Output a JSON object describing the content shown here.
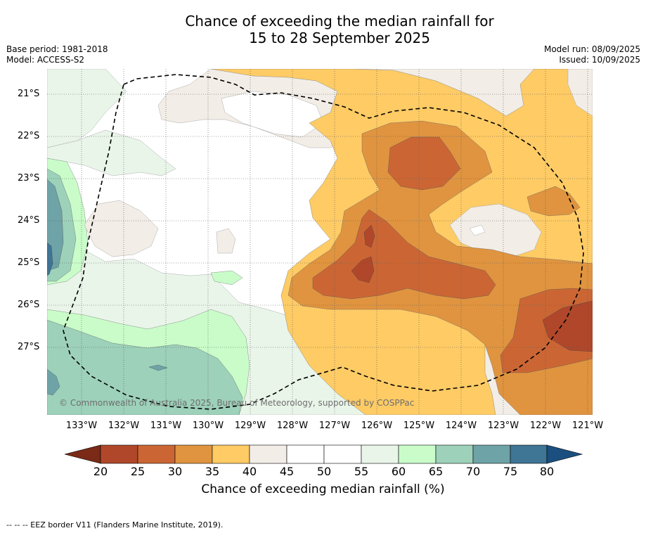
{
  "title_line1": "Chance of exceeding the median rainfall for",
  "title_line2": "15 to 28 September 2025",
  "meta": {
    "base_period": "Base period: 1981-2018",
    "model": "Model: ACCESS-S2",
    "model_run": "Model run: 08/09/2025",
    "issued": "Issued: 10/09/2025"
  },
  "map": {
    "lat_labels": [
      "21°S",
      "22°S",
      "23°S",
      "24°S",
      "25°S",
      "26°S",
      "27°S"
    ],
    "lon_labels": [
      "133°W",
      "132°W",
      "131°W",
      "130°W",
      "129°W",
      "128°W",
      "127°W",
      "126°W",
      "125°W",
      "124°W",
      "123°W",
      "122°W",
      "121°W"
    ],
    "copyright": "© Commonwealth of Australia 2025, Bureau of Meteorology, supported by COSPPac",
    "boundary": "EEZ border (dashed)"
  },
  "colorbar": {
    "ticks": [
      "20",
      "25",
      "30",
      "35",
      "40",
      "45",
      "50",
      "55",
      "60",
      "65",
      "70",
      "75",
      "80"
    ],
    "colors": [
      "#7a2a17",
      "#b0472a",
      "#cb6634",
      "#e0943f",
      "#fecb65",
      "#f2ede6",
      "#ffffff",
      "#ffffff",
      "#eaf5ea",
      "#c9fcc9",
      "#9dd1ba",
      "#6ea3a7",
      "#3f7595",
      "#1b4f7f"
    ],
    "title": "Chance of exceeding median rainfall (%)"
  },
  "footnote": "--  --  -- EEZ border V11 (Flanders Marine Institute, 2019)."
}
